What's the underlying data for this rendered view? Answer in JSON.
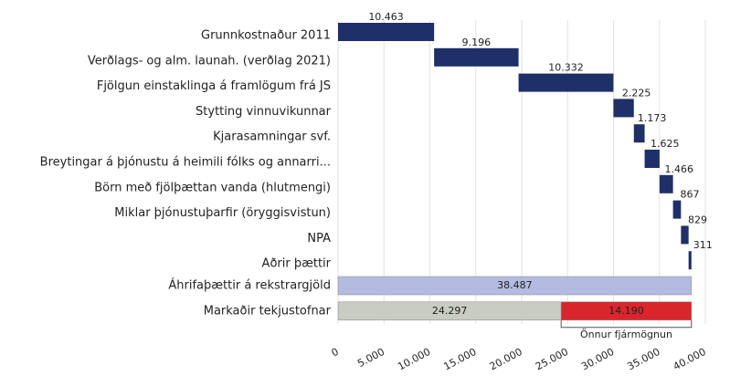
{
  "chart_data": {
    "type": "waterfall",
    "categories": [
      "Grunnkostnaður 2011",
      "Verðlags- og alm. launah. (verðlag 2021)",
      "Fjölgun einstaklinga á framlögum frá JS",
      "Stytting vinnuvikunnar",
      "Kjarasamningar svf.",
      "Breytingar á þjónustu á heimili fólks og annarri...",
      "Börn með fjölþættan vanda (hlutmengi)",
      "Miklar þjónustuþarfir (öryggisvistun)",
      "NPA",
      "Aðrir þættir"
    ],
    "values": [
      10463,
      9196,
      10332,
      2225,
      1173,
      1625,
      1466,
      867,
      829,
      311
    ],
    "value_labels": [
      "10.463",
      "9.196",
      "10.332",
      "2.225",
      "1.173",
      "1.625",
      "1.466",
      "867",
      "829",
      "311"
    ],
    "color": "#1f3068",
    "totals": [
      {
        "category": "Áhrifaþættir á rekstrargjöld",
        "values": [
          38487
        ],
        "value_labels": [
          "38.487"
        ],
        "colors": [
          "#b3bbe0"
        ]
      },
      {
        "category": "Markaðir tekjustofnar",
        "values": [
          24297,
          14190
        ],
        "value_labels": [
          "24.297",
          "14.190"
        ],
        "colors": [
          "#c9ccc0",
          "#d9262c"
        ]
      }
    ],
    "annotation": "Önnur fjármögnun",
    "xlim": [
      0,
      40000
    ],
    "xticks": [
      0,
      {
        "value": 5000,
        "label": "5.000"
      },
      {
        "value": 10000,
        "label": "10.000"
      },
      {
        "value": 15000,
        "label": "15.000"
      },
      {
        "value": 20000,
        "label": "20.000"
      },
      {
        "value": 25000,
        "label": "25.000"
      },
      {
        "value": 30000,
        "label": "30.000"
      },
      {
        "value": 35000,
        "label": "35.000"
      },
      {
        "value": 40000,
        "label": "40.000"
      }
    ],
    "grid": true
  }
}
